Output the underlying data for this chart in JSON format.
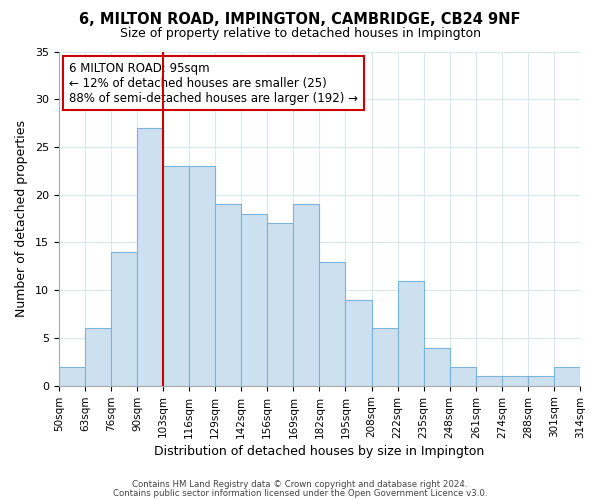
{
  "title": "6, MILTON ROAD, IMPINGTON, CAMBRIDGE, CB24 9NF",
  "subtitle": "Size of property relative to detached houses in Impington",
  "xlabel": "Distribution of detached houses by size in Impington",
  "ylabel": "Number of detached properties",
  "bin_labels": [
    "50sqm",
    "63sqm",
    "76sqm",
    "90sqm",
    "103sqm",
    "116sqm",
    "129sqm",
    "142sqm",
    "156sqm",
    "169sqm",
    "182sqm",
    "195sqm",
    "208sqm",
    "222sqm",
    "235sqm",
    "248sqm",
    "261sqm",
    "274sqm",
    "288sqm",
    "301sqm",
    "314sqm"
  ],
  "bin_values": [
    2,
    6,
    14,
    27,
    23,
    23,
    19,
    18,
    17,
    19,
    13,
    9,
    6,
    11,
    4,
    2,
    1,
    1,
    1,
    2
  ],
  "bar_color": "#cde0f0",
  "bar_edge_color": "#7ab4d8",
  "vline_x_index": 4,
  "vline_color": "#cc0000",
  "ylim": [
    0,
    35
  ],
  "yticks": [
    0,
    5,
    10,
    15,
    20,
    25,
    30,
    35
  ],
  "annotation_title": "6 MILTON ROAD: 95sqm",
  "annotation_line1": "← 12% of detached houses are smaller (25)",
  "annotation_line2": "88% of semi-detached houses are larger (192) →",
  "annotation_box_color": "#ffffff",
  "annotation_box_edge": "#cc0000",
  "footer_line1": "Contains HM Land Registry data © Crown copyright and database right 2024.",
  "footer_line2": "Contains public sector information licensed under the Open Government Licence v3.0.",
  "background_color": "#ffffff",
  "grid_color": "#d8e8f0"
}
